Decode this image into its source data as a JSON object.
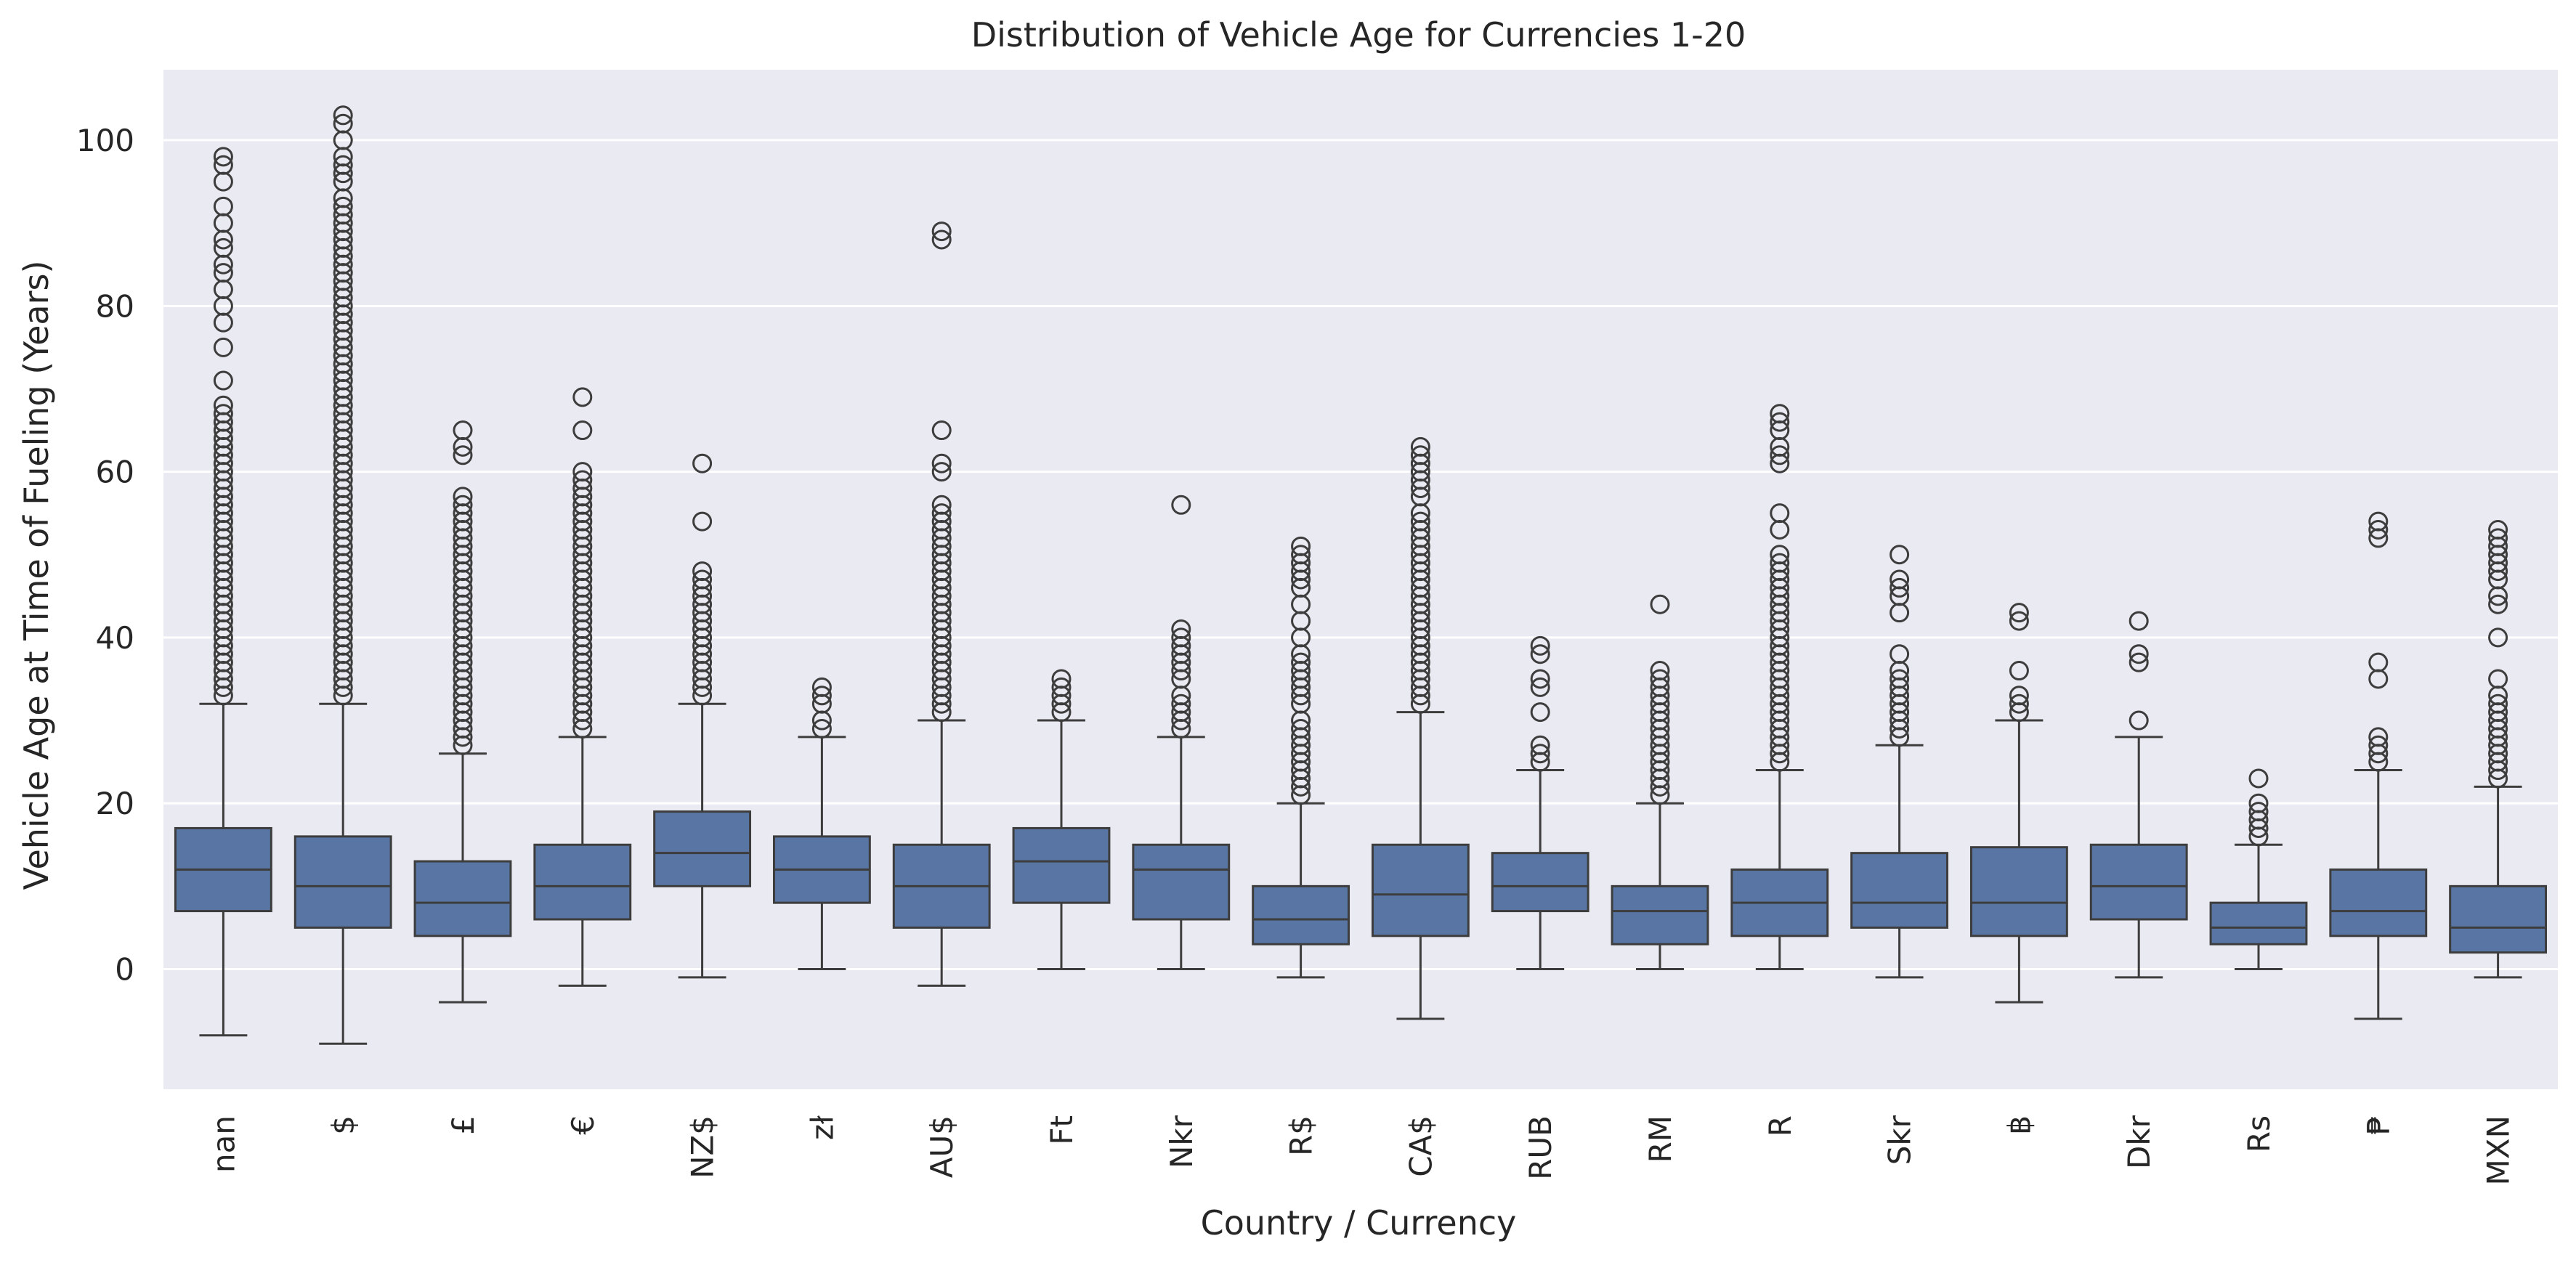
{
  "chart_data": {
    "type": "box",
    "title": "Distribution of Vehicle Age for Currencies 1-20",
    "xlabel": "Country / Currency",
    "ylabel": "Vehicle Age at Time of Fueling (Years)",
    "ylim": [
      -14.5,
      108.5
    ],
    "yticks": [
      0,
      20,
      40,
      60,
      80,
      100
    ],
    "grid": true,
    "legend": "none",
    "colors": {
      "box": "#5875a4",
      "line": "#3d3d3d",
      "background": "#eaeaf2",
      "grid": "#ffffff"
    },
    "categories": [
      "nan",
      "$",
      "£",
      "€",
      "NZ$",
      "zł",
      "AU$",
      "Ft",
      "Nkr",
      "R$",
      "CA$",
      "RUB",
      "RM",
      "R",
      "Skr",
      "฿",
      "Dkr",
      "Rs",
      "₱",
      "MXN"
    ],
    "boxes": [
      {
        "whisker_low": -8,
        "q1": 7,
        "median": 12,
        "q3": 17,
        "whisker_high": 32,
        "outliers": [
          33,
          34,
          35,
          36,
          37,
          38,
          39,
          40,
          41,
          42,
          43,
          44,
          45,
          46,
          47,
          48,
          49,
          50,
          51,
          52,
          53,
          54,
          55,
          56,
          57,
          58,
          59,
          60,
          61,
          62,
          63,
          64,
          65,
          66,
          67,
          68,
          71,
          75,
          78,
          80,
          82,
          84,
          85,
          87,
          88,
          90,
          92,
          95,
          97,
          98
        ]
      },
      {
        "whisker_low": -9,
        "q1": 5,
        "median": 10,
        "q3": 16,
        "whisker_high": 32,
        "outliers": [
          33,
          34,
          35,
          36,
          37,
          38,
          39,
          40,
          41,
          42,
          43,
          44,
          45,
          46,
          47,
          48,
          49,
          50,
          51,
          52,
          53,
          54,
          55,
          56,
          57,
          58,
          59,
          60,
          61,
          62,
          63,
          64,
          65,
          66,
          67,
          68,
          69,
          70,
          71,
          72,
          73,
          74,
          75,
          76,
          77,
          78,
          79,
          80,
          81,
          82,
          83,
          84,
          85,
          86,
          87,
          88,
          89,
          90,
          91,
          92,
          93,
          95,
          96,
          97,
          98,
          100,
          102,
          103
        ]
      },
      {
        "whisker_low": -4,
        "q1": 4,
        "median": 8,
        "q3": 13,
        "whisker_high": 26,
        "outliers": [
          27,
          28,
          29,
          30,
          31,
          32,
          33,
          34,
          35,
          36,
          37,
          38,
          39,
          40,
          41,
          42,
          43,
          44,
          45,
          46,
          47,
          48,
          49,
          50,
          51,
          52,
          53,
          54,
          55,
          56,
          57,
          62,
          63,
          65
        ]
      },
      {
        "whisker_low": -2,
        "q1": 6,
        "median": 10,
        "q3": 15,
        "whisker_high": 28,
        "outliers": [
          29,
          30,
          31,
          32,
          33,
          34,
          35,
          36,
          37,
          38,
          39,
          40,
          41,
          42,
          43,
          44,
          45,
          46,
          47,
          48,
          49,
          50,
          51,
          52,
          53,
          54,
          55,
          56,
          57,
          58,
          59,
          60,
          65,
          69
        ]
      },
      {
        "whisker_low": -1,
        "q1": 10,
        "median": 14,
        "q3": 19,
        "whisker_high": 32,
        "outliers": [
          33,
          34,
          35,
          36,
          37,
          38,
          39,
          40,
          41,
          42,
          43,
          44,
          45,
          46,
          47,
          48,
          54,
          61
        ]
      },
      {
        "whisker_low": 0,
        "q1": 8,
        "median": 12,
        "q3": 16,
        "whisker_high": 28,
        "outliers": [
          29,
          30,
          32,
          33,
          34
        ]
      },
      {
        "whisker_low": -2,
        "q1": 5,
        "median": 10,
        "q3": 15,
        "whisker_high": 30,
        "outliers": [
          31,
          32,
          33,
          34,
          35,
          36,
          37,
          38,
          39,
          40,
          41,
          42,
          43,
          44,
          45,
          46,
          47,
          48,
          49,
          50,
          51,
          52,
          53,
          54,
          55,
          56,
          60,
          61,
          65,
          88,
          89
        ]
      },
      {
        "whisker_low": 0,
        "q1": 8,
        "median": 13,
        "q3": 17,
        "whisker_high": 30,
        "outliers": [
          31,
          32,
          33,
          34,
          35
        ]
      },
      {
        "whisker_low": 0,
        "q1": 6,
        "median": 12,
        "q3": 15,
        "whisker_high": 28,
        "outliers": [
          29,
          30,
          31,
          32,
          33,
          35,
          36,
          37,
          38,
          39,
          40,
          41,
          56
        ]
      },
      {
        "whisker_low": -1,
        "q1": 3,
        "median": 6,
        "q3": 10,
        "whisker_high": 20,
        "outliers": [
          21,
          22,
          23,
          24,
          25,
          26,
          27,
          28,
          29,
          30,
          32,
          33,
          34,
          35,
          36,
          37,
          38,
          40,
          42,
          44,
          46,
          47,
          48,
          49,
          50,
          51
        ]
      },
      {
        "whisker_low": -6,
        "q1": 4,
        "median": 9,
        "q3": 15,
        "whisker_high": 31,
        "outliers": [
          32,
          33,
          34,
          35,
          36,
          37,
          38,
          39,
          40,
          41,
          42,
          43,
          44,
          45,
          46,
          47,
          48,
          49,
          50,
          51,
          52,
          53,
          54,
          55,
          57,
          58,
          59,
          60,
          61,
          62,
          63
        ]
      },
      {
        "whisker_low": 0,
        "q1": 7,
        "median": 10,
        "q3": 14,
        "whisker_high": 24,
        "outliers": [
          25,
          26,
          27,
          31,
          34,
          35,
          38,
          39
        ]
      },
      {
        "whisker_low": 0,
        "q1": 3,
        "median": 7,
        "q3": 10,
        "whisker_high": 20,
        "outliers": [
          21,
          22,
          23,
          24,
          25,
          26,
          27,
          28,
          29,
          30,
          31,
          32,
          33,
          34,
          35,
          36,
          44
        ]
      },
      {
        "whisker_low": 0,
        "q1": 4,
        "median": 8,
        "q3": 12,
        "whisker_high": 24,
        "outliers": [
          25,
          26,
          27,
          28,
          29,
          30,
          31,
          32,
          33,
          34,
          35,
          36,
          37,
          38,
          39,
          40,
          41,
          42,
          43,
          44,
          45,
          46,
          47,
          48,
          49,
          50,
          53,
          55,
          61,
          62,
          63,
          65,
          66,
          67
        ]
      },
      {
        "whisker_low": -1,
        "q1": 5,
        "median": 8,
        "q3": 14,
        "whisker_high": 27,
        "outliers": [
          28,
          29,
          30,
          31,
          32,
          33,
          34,
          35,
          36,
          38,
          43,
          45,
          46,
          47,
          50
        ]
      },
      {
        "whisker_low": -4,
        "q1": 4,
        "median": 8,
        "q3": 14.7,
        "whisker_high": 30,
        "outliers": [
          31,
          32,
          33,
          36,
          42,
          43
        ]
      },
      {
        "whisker_low": -1,
        "q1": 6,
        "median": 10,
        "q3": 15,
        "whisker_high": 28,
        "outliers": [
          30,
          37,
          38,
          42
        ]
      },
      {
        "whisker_low": 0,
        "q1": 3,
        "median": 5,
        "q3": 8,
        "whisker_high": 15,
        "outliers": [
          16,
          17,
          18,
          19,
          20,
          23
        ]
      },
      {
        "whisker_low": -6,
        "q1": 4,
        "median": 7,
        "q3": 12,
        "whisker_high": 24,
        "outliers": [
          25,
          26,
          27,
          28,
          35,
          37,
          52,
          53,
          54
        ]
      },
      {
        "whisker_low": -1,
        "q1": 2,
        "median": 5,
        "q3": 10,
        "whisker_high": 22,
        "outliers": [
          23,
          24,
          25,
          26,
          27,
          28,
          29,
          30,
          31,
          32,
          33,
          35,
          40,
          44,
          45,
          47,
          48,
          49,
          50,
          51,
          52,
          53
        ]
      }
    ]
  }
}
